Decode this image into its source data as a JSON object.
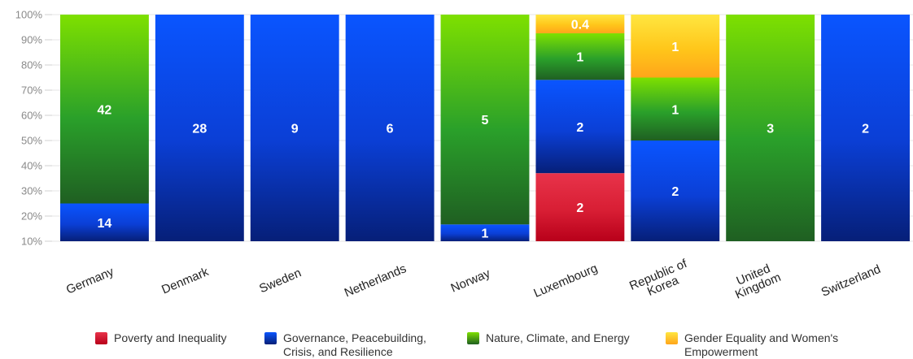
{
  "chart_data": {
    "type": "bar",
    "stacked": true,
    "normalized": true,
    "categories": [
      "Germany",
      "Denmark",
      "Sweden",
      "Netherlands",
      "Norway",
      "Luxembourg",
      "Republic of Korea",
      "United Kingdom",
      "Switzerland"
    ],
    "category_lines": [
      [
        "Germany"
      ],
      [
        "Denmark"
      ],
      [
        "Sweden"
      ],
      [
        "Netherlands"
      ],
      [
        "Norway"
      ],
      [
        "Luxembourg"
      ],
      [
        "Republic of",
        "Korea"
      ],
      [
        "United",
        "Kingdom"
      ],
      [
        "Switzerland"
      ]
    ],
    "series": [
      {
        "name": "Poverty and Inequality",
        "name_lines": [
          "Poverty and Inequality"
        ],
        "color": "#d81e34",
        "color_light": "#e8334a",
        "color_dark": "#b8001a",
        "values": [
          0,
          0,
          0,
          0,
          0,
          2,
          0,
          0,
          0
        ],
        "labels": [
          "",
          "",
          "",
          "",
          "",
          "2",
          "",
          "",
          ""
        ]
      },
      {
        "name": "Governance, Peacebuilding, Crisis, and Resilience",
        "name_lines": [
          "Governance, Peacebuilding,",
          "Crisis, and Resilience"
        ],
        "color": "#0b3fd6",
        "color_light": "#0a55ff",
        "color_dark": "#061f78",
        "values": [
          14,
          28,
          9,
          6,
          1,
          2,
          2,
          0,
          2
        ],
        "labels": [
          "14",
          "28",
          "9",
          "6",
          "1",
          "2",
          "2",
          "",
          "2"
        ]
      },
      {
        "name": "Nature, Climate, and Energy",
        "name_lines": [
          "Nature, Climate, and Energy"
        ],
        "color": "#2aa02a",
        "color_light": "#7ee000",
        "color_dark": "#1f5f22",
        "values": [
          42,
          0,
          0,
          0,
          5,
          1,
          1,
          3,
          0
        ],
        "labels": [
          "42",
          "",
          "",
          "",
          "5",
          "1",
          "1",
          "3",
          ""
        ]
      },
      {
        "name": "Gender Equality and Women's Empowerment",
        "name_lines": [
          "Gender Equality and Women's",
          "Empowerment"
        ],
        "color": "#ffc61a",
        "color_light": "#ffe640",
        "color_dark": "#ffa51a",
        "values": [
          0,
          0,
          0,
          0,
          0,
          0.4,
          1,
          0,
          0
        ],
        "labels": [
          "",
          "",
          "",
          "",
          "",
          "0.4",
          "1",
          "",
          ""
        ]
      }
    ],
    "y_ticks": [
      "10%",
      "20%",
      "30%",
      "40%",
      "50%",
      "60%",
      "70%",
      "80%",
      "90%",
      "100%"
    ],
    "ylim": [
      10,
      100
    ],
    "grid": true,
    "legend_position": "bottom"
  }
}
